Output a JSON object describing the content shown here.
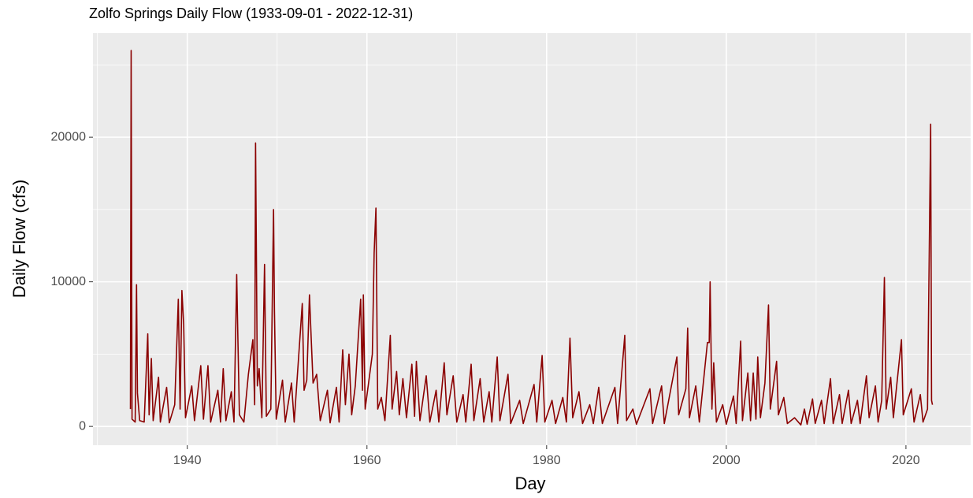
{
  "chart_data": {
    "type": "line",
    "title": "Zolfo Springs Daily Flow (1933-09-01 - 2022-12-31)",
    "x_label": "Day",
    "y_label": "Daily Flow (cfs)",
    "color": "#8b0000",
    "grid": true,
    "xlim": [
      1929.5,
      2027.2
    ],
    "ylim": [
      -1300,
      27200
    ],
    "xticks": [
      1940,
      1960,
      1980,
      2000,
      2020
    ],
    "yticks": [
      0,
      10000,
      20000
    ],
    "x": [
      1933.67,
      1933.75,
      1933.85,
      1934.2,
      1934.35,
      1934.45,
      1934.7,
      1935.2,
      1935.6,
      1935.75,
      1936.0,
      1936.2,
      1936.8,
      1937.0,
      1937.7,
      1938.0,
      1938.6,
      1939.0,
      1939.2,
      1939.4,
      1939.6,
      1939.8,
      1940.5,
      1940.8,
      1941.5,
      1941.8,
      1942.3,
      1942.6,
      1943.4,
      1943.7,
      1944.0,
      1944.3,
      1944.9,
      1945.2,
      1945.5,
      1945.6,
      1945.8,
      1946.3,
      1946.8,
      1947.3,
      1947.5,
      1947.6,
      1947.8,
      1948.0,
      1948.3,
      1948.6,
      1948.8,
      1949.3,
      1949.6,
      1949.7,
      1949.9,
      1950.6,
      1950.9,
      1951.6,
      1951.9,
      1952.8,
      1953.0,
      1953.3,
      1953.6,
      1953.8,
      1954.0,
      1954.4,
      1954.8,
      1955.6,
      1955.9,
      1956.6,
      1956.9,
      1957.3,
      1957.6,
      1958.0,
      1958.3,
      1958.7,
      1959.3,
      1959.5,
      1959.6,
      1959.8,
      1960.6,
      1960.8,
      1961.0,
      1961.2,
      1961.6,
      1962.0,
      1962.6,
      1962.8,
      1963.3,
      1963.6,
      1964.0,
      1964.4,
      1965.0,
      1965.3,
      1965.5,
      1965.9,
      1966.6,
      1967.0,
      1967.7,
      1968.0,
      1968.6,
      1968.9,
      1969.6,
      1970.0,
      1970.7,
      1971.0,
      1971.6,
      1971.9,
      1972.6,
      1973.0,
      1973.6,
      1973.9,
      1974.5,
      1974.8,
      1975.7,
      1976.0,
      1977.0,
      1977.4,
      1978.6,
      1978.9,
      1979.5,
      1979.8,
      1980.6,
      1981.0,
      1981.8,
      1982.2,
      1982.6,
      1982.7,
      1982.9,
      1983.6,
      1984.0,
      1984.8,
      1985.2,
      1985.8,
      1986.2,
      1987.6,
      1987.9,
      1988.7,
      1988.9,
      1989.6,
      1990.0,
      1991.5,
      1991.8,
      1992.8,
      1993.1,
      1994.5,
      1994.7,
      1995.5,
      1995.7,
      1995.9,
      1996.6,
      1997.0,
      1997.9,
      1998.1,
      1998.2,
      1998.4,
      1998.6,
      1998.9,
      1999.6,
      2000.0,
      2000.8,
      2001.1,
      2001.6,
      2001.8,
      2002.4,
      2002.7,
      2003.0,
      2003.3,
      2003.5,
      2003.8,
      2004.3,
      2004.7,
      2004.9,
      2005.6,
      2005.8,
      2006.4,
      2006.8,
      2007.6,
      2008.3,
      2008.7,
      2009.0,
      2009.6,
      2009.9,
      2010.6,
      2010.9,
      2011.6,
      2011.9,
      2012.6,
      2012.9,
      2013.6,
      2013.9,
      2014.6,
      2014.9,
      2015.6,
      2015.9,
      2016.6,
      2016.9,
      2017.3,
      2017.6,
      2017.8,
      2018.3,
      2018.6,
      2019.5,
      2019.7,
      2020.6,
      2020.9,
      2021.6,
      2021.9,
      2022.4,
      2022.75,
      2022.85,
      2022.95
    ],
    "values": [
      1200,
      26000,
      500,
      300,
      9800,
      2300,
      400,
      300,
      6400,
      800,
      4700,
      400,
      3400,
      300,
      2700,
      250,
      1500,
      8800,
      1200,
      9400,
      7000,
      600,
      2800,
      400,
      4200,
      500,
      4200,
      300,
      2500,
      300,
      4000,
      400,
      2400,
      300,
      10500,
      7100,
      800,
      300,
      3600,
      6000,
      1500,
      19600,
      2800,
      4000,
      600,
      11200,
      700,
      1200,
      15000,
      8000,
      500,
      3200,
      300,
      3000,
      300,
      8500,
      2500,
      3200,
      9100,
      6000,
      3000,
      3600,
      400,
      2500,
      250,
      2700,
      300,
      5300,
      1500,
      5000,
      800,
      2800,
      8800,
      2500,
      9100,
      1200,
      5000,
      12000,
      15100,
      1200,
      2000,
      400,
      6300,
      1200,
      3800,
      800,
      3300,
      600,
      4300,
      700,
      4500,
      400,
      3500,
      300,
      2500,
      300,
      4400,
      800,
      3500,
      300,
      2200,
      300,
      4300,
      400,
      3300,
      300,
      2400,
      300,
      4800,
      400,
      3600,
      200,
      1800,
      200,
      2900,
      300,
      4900,
      300,
      1800,
      200,
      2000,
      300,
      6100,
      4300,
      600,
      2400,
      200,
      1500,
      200,
      2700,
      200,
      2700,
      200,
      6300,
      400,
      1200,
      150,
      2600,
      200,
      2800,
      200,
      4800,
      800,
      2600,
      6800,
      600,
      2800,
      300,
      5800,
      5800,
      10000,
      1200,
      4400,
      300,
      1500,
      150,
      2100,
      200,
      5900,
      400,
      3700,
      400,
      3700,
      500,
      4800,
      600,
      3000,
      8400,
      1200,
      4500,
      800,
      2000,
      200,
      600,
      100,
      1200,
      150,
      1900,
      200,
      1800,
      200,
      3300,
      200,
      2200,
      200,
      2500,
      200,
      1800,
      200,
      3500,
      600,
      2800,
      300,
      1800,
      10300,
      1200,
      3400,
      600,
      6000,
      800,
      2600,
      300,
      2200,
      300,
      1200,
      20900,
      1800,
      1500
    ]
  }
}
